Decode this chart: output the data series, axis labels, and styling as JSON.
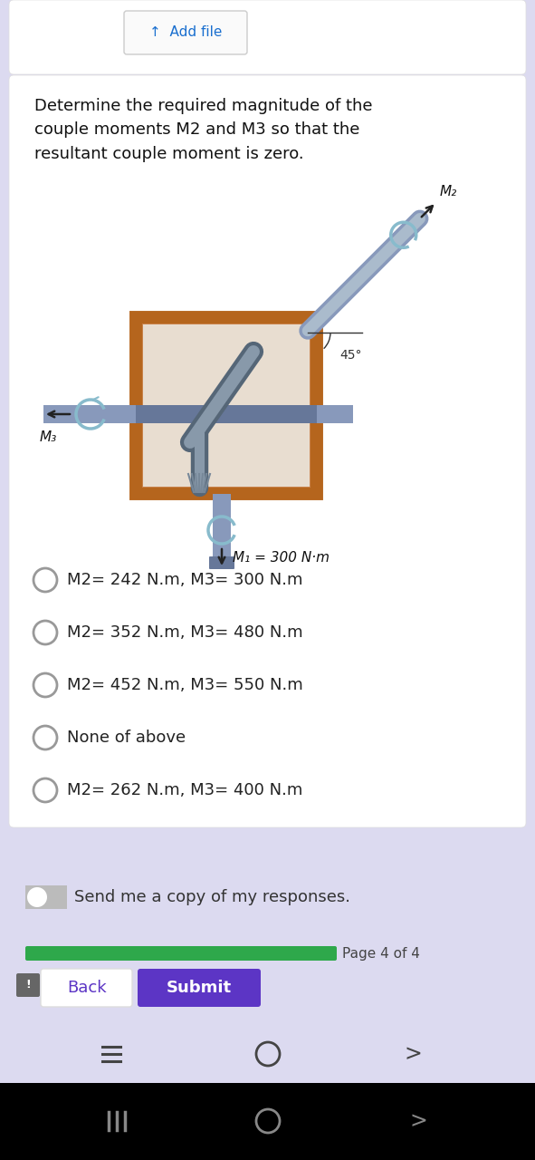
{
  "bg_outer": "#dcdaf0",
  "bg_card": "#ffffff",
  "title_text": "Determine the required magnitude of the\ncouple moments M2 and M3 so that the\nresultant couple moment is zero.",
  "add_file_text": "↑  Add file",
  "options": [
    "M2= 242 N.m, M3= 300 N.m",
    "M2= 352 N.m, M3= 480 N.m",
    "M2= 452 N.m, M3= 550 N.m",
    "None of above",
    "M2= 262 N.m, M3= 400 N.m"
  ],
  "send_copy_text": "Send me a copy of my responses.",
  "page_text": "Page 4 of 4",
  "back_text": "Back",
  "submit_text": "Submit",
  "back_color": "#ffffff",
  "submit_color": "#5c35c5",
  "progress_color": "#2ea84b",
  "toggle_bg": "#bbbbbb",
  "option_text_color": "#222222",
  "title_color": "#111111",
  "back_text_color": "#5c35c5",
  "shaft_color": "#8899bb",
  "shaft_dark": "#667799",
  "brown_frame": "#b5651d",
  "brown_fill": "#c8824a",
  "inner_fill": "#e8ddd0",
  "spin_color": "#88bbcc",
  "arrow_color": "#222222"
}
